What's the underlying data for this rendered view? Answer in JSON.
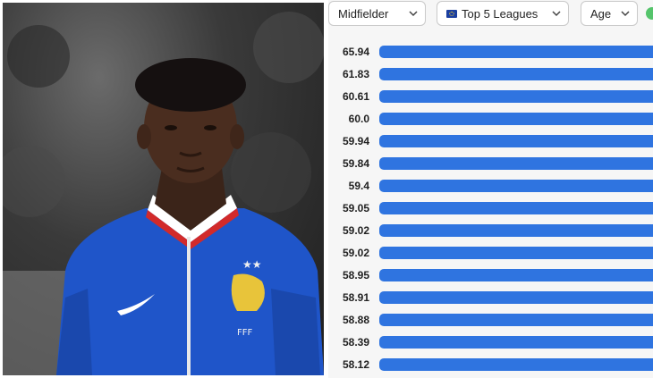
{
  "filters": {
    "position": "Midfielder",
    "league": "Top 5 Leagues",
    "sort": "Age"
  },
  "bar_color": "#2f74e0",
  "rows": [
    {
      "value": "65.94"
    },
    {
      "value": "61.83"
    },
    {
      "value": "60.61"
    },
    {
      "value": "60.0"
    },
    {
      "value": "59.94"
    },
    {
      "value": "59.84"
    },
    {
      "value": "59.4"
    },
    {
      "value": "59.05"
    },
    {
      "value": "59.02"
    },
    {
      "value": "59.02"
    },
    {
      "value": "58.95"
    },
    {
      "value": "58.91"
    },
    {
      "value": "58.88"
    },
    {
      "value": "58.39"
    },
    {
      "value": "58.12"
    }
  ]
}
